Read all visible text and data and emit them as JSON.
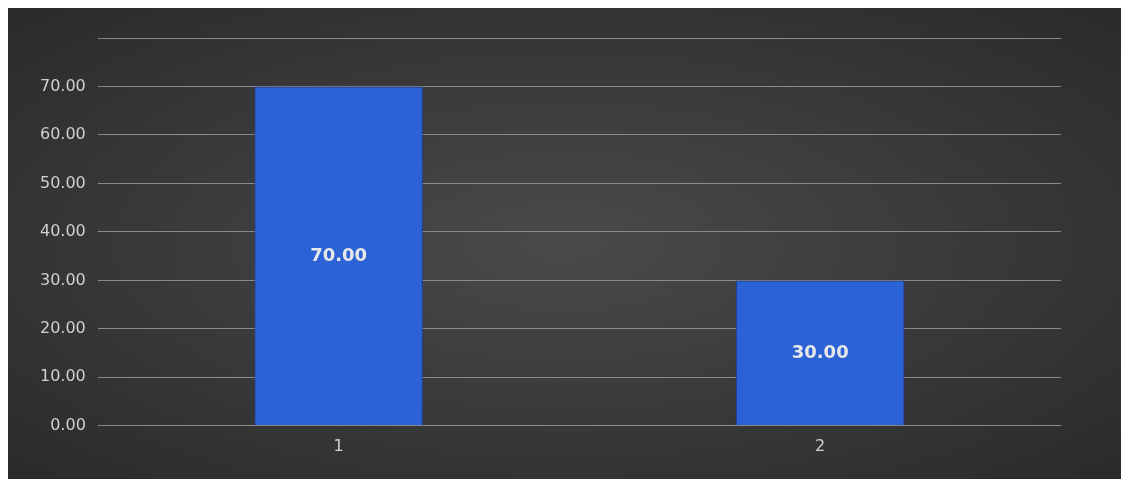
{
  "chart_data": {
    "type": "bar",
    "categories": [
      "1",
      "2"
    ],
    "values": [
      70,
      30
    ],
    "color": "#2b62d6",
    "value_labels": [
      "70.00",
      "30.00"
    ],
    "ylim": [
      0,
      80
    ],
    "yticks": [
      {
        "value": 0,
        "label": "0.00"
      },
      {
        "value": 10,
        "label": "10.00"
      },
      {
        "value": 20,
        "label": "20.00"
      },
      {
        "value": 30,
        "label": "30.00"
      },
      {
        "value": 40,
        "label": "40.00"
      },
      {
        "value": 50,
        "label": "50.00"
      },
      {
        "value": 60,
        "label": "60.00"
      },
      {
        "value": 70,
        "label": "70.00"
      },
      {
        "value": 80,
        "label": null
      }
    ],
    "grid": "y",
    "legend": false
  }
}
